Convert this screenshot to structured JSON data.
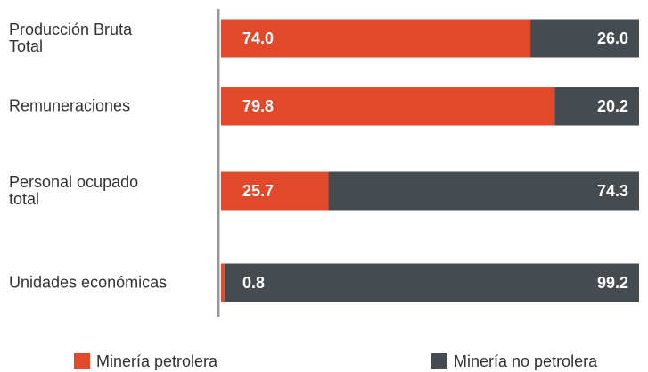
{
  "chart_data": {
    "type": "stacked-barh",
    "categories": [
      "Producción Bruta\nTotal",
      "Remuneraciones",
      "Personal ocupado\ntotal",
      "Unidades económicas"
    ],
    "series": [
      {
        "name": "Minería petrolera",
        "color": "#e2492a",
        "values": [
          74.0,
          79.8,
          25.7,
          0.8
        ],
        "value_labels": [
          "74.0",
          "79.8",
          "25.7",
          "0.8"
        ]
      },
      {
        "name": "Minería no petrolera",
        "color": "#464b50",
        "values": [
          26.0,
          20.2,
          74.3,
          99.2
        ],
        "value_labels": [
          "26.0",
          "20.2",
          "74.3",
          "99.2"
        ]
      }
    ],
    "xlim": [
      0,
      100
    ],
    "legend": "bottom"
  }
}
